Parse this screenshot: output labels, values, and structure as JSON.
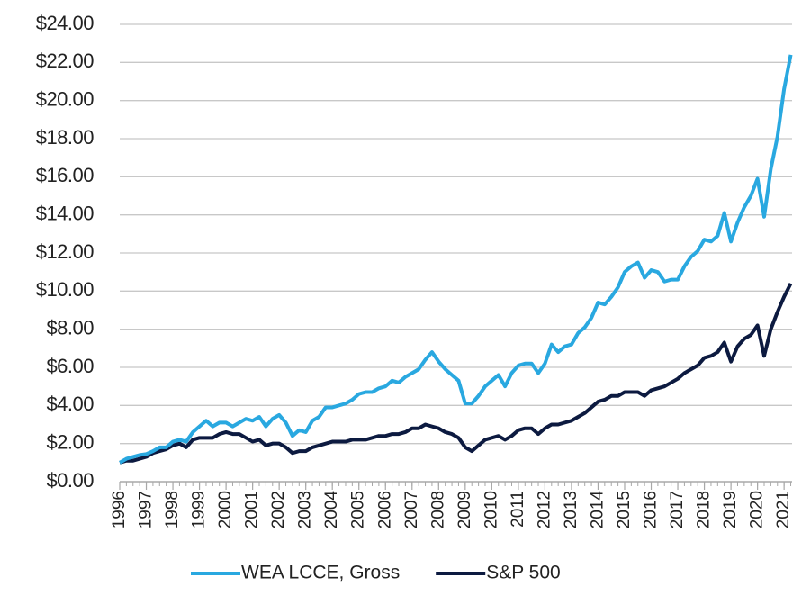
{
  "chart_data": {
    "type": "line",
    "x": [
      1996,
      1996.25,
      1996.5,
      1996.75,
      1997,
      1997.25,
      1997.5,
      1997.75,
      1998,
      1998.25,
      1998.5,
      1998.75,
      1999,
      1999.25,
      1999.5,
      1999.75,
      2000,
      2000.25,
      2000.5,
      2000.75,
      2001,
      2001.25,
      2001.5,
      2001.75,
      2002,
      2002.25,
      2002.5,
      2002.75,
      2003,
      2003.25,
      2003.5,
      2003.75,
      2004,
      2004.25,
      2004.5,
      2004.75,
      2005,
      2005.25,
      2005.5,
      2005.75,
      2006,
      2006.25,
      2006.5,
      2006.75,
      2007,
      2007.25,
      2007.5,
      2007.75,
      2008,
      2008.25,
      2008.5,
      2008.75,
      2009,
      2009.25,
      2009.5,
      2009.75,
      2010,
      2010.25,
      2010.5,
      2010.75,
      2011,
      2011.25,
      2011.5,
      2011.75,
      2012,
      2012.25,
      2012.5,
      2012.75,
      2013,
      2013.25,
      2013.5,
      2013.75,
      2014,
      2014.25,
      2014.5,
      2014.75,
      2015,
      2015.25,
      2015.5,
      2015.75,
      2016,
      2016.25,
      2016.5,
      2016.75,
      2017,
      2017.25,
      2017.5,
      2017.75,
      2018,
      2018.25,
      2018.5,
      2018.75,
      2019,
      2019.25,
      2019.5,
      2019.75,
      2020,
      2020.25,
      2020.5,
      2020.75,
      2021,
      2021.25
    ],
    "series": [
      {
        "name": "WEA LCCE, Gross",
        "color": "#29a8e0",
        "values": [
          1.0,
          1.2,
          1.3,
          1.4,
          1.45,
          1.6,
          1.8,
          1.8,
          2.1,
          2.2,
          2.1,
          2.6,
          2.9,
          3.2,
          2.9,
          3.1,
          3.1,
          2.9,
          3.1,
          3.3,
          3.2,
          3.4,
          2.9,
          3.3,
          3.5,
          3.1,
          2.4,
          2.7,
          2.6,
          3.2,
          3.4,
          3.9,
          3.9,
          4.0,
          4.1,
          4.3,
          4.6,
          4.7,
          4.7,
          4.9,
          5.0,
          5.3,
          5.2,
          5.5,
          5.7,
          5.9,
          6.4,
          6.8,
          6.3,
          5.9,
          5.6,
          5.3,
          4.1,
          4.1,
          4.5,
          5.0,
          5.3,
          5.6,
          5.0,
          5.7,
          6.1,
          6.2,
          6.2,
          5.7,
          6.2,
          7.2,
          6.8,
          7.1,
          7.2,
          7.8,
          8.1,
          8.6,
          9.4,
          9.3,
          9.7,
          10.2,
          11.0,
          11.3,
          11.5,
          10.7,
          11.1,
          11.0,
          10.5,
          10.6,
          10.6,
          11.3,
          11.8,
          12.1,
          12.7,
          12.6,
          12.9,
          14.1,
          12.6,
          13.6,
          14.4,
          15.0,
          15.9,
          13.9,
          16.4,
          18.1,
          20.6,
          22.4
        ]
      },
      {
        "name": "S&P 500",
        "color": "#0c1a40",
        "values": [
          1.0,
          1.1,
          1.1,
          1.2,
          1.3,
          1.5,
          1.6,
          1.7,
          1.9,
          2.0,
          1.8,
          2.2,
          2.3,
          2.3,
          2.3,
          2.5,
          2.6,
          2.5,
          2.5,
          2.3,
          2.1,
          2.2,
          1.9,
          2.0,
          2.0,
          1.8,
          1.5,
          1.6,
          1.6,
          1.8,
          1.9,
          2.0,
          2.1,
          2.1,
          2.1,
          2.2,
          2.2,
          2.2,
          2.3,
          2.4,
          2.4,
          2.5,
          2.5,
          2.6,
          2.8,
          2.8,
          3.0,
          2.9,
          2.8,
          2.6,
          2.5,
          2.3,
          1.8,
          1.6,
          1.9,
          2.2,
          2.3,
          2.4,
          2.2,
          2.4,
          2.7,
          2.8,
          2.8,
          2.5,
          2.8,
          3.0,
          3.0,
          3.1,
          3.2,
          3.4,
          3.6,
          3.9,
          4.2,
          4.3,
          4.5,
          4.5,
          4.7,
          4.7,
          4.7,
          4.5,
          4.8,
          4.9,
          5.0,
          5.2,
          5.4,
          5.7,
          5.9,
          6.1,
          6.5,
          6.6,
          6.8,
          7.3,
          6.3,
          7.1,
          7.5,
          7.7,
          8.2,
          6.6,
          8.0,
          8.9,
          9.7,
          10.4
        ]
      }
    ],
    "xlim": [
      1996,
      2021.3
    ],
    "xticks": [
      1996,
      1997,
      1998,
      1999,
      2000,
      2001,
      2002,
      2003,
      2004,
      2005,
      2006,
      2007,
      2008,
      2009,
      2010,
      2011,
      2012,
      2013,
      2014,
      2015,
      2016,
      2017,
      2018,
      2019,
      2020,
      2021
    ],
    "ylim": [
      0,
      24
    ],
    "yticks": [
      {
        "value": 0,
        "label": "$0.00"
      },
      {
        "value": 2,
        "label": "$2.00"
      },
      {
        "value": 4,
        "label": "$4.00"
      },
      {
        "value": 6,
        "label": "$6.00"
      },
      {
        "value": 8,
        "label": "$8.00"
      },
      {
        "value": 10,
        "label": "$10.00"
      },
      {
        "value": 12,
        "label": "$12.00"
      },
      {
        "value": 14,
        "label": "$14.00"
      },
      {
        "value": 16,
        "label": "$16.00"
      },
      {
        "value": 18,
        "label": "$18.00"
      },
      {
        "value": 20,
        "label": "$20.00"
      },
      {
        "value": 22,
        "label": "$22.00"
      },
      {
        "value": 24,
        "label": "$24.00"
      }
    ],
    "grid": true,
    "legend": "bottom"
  }
}
